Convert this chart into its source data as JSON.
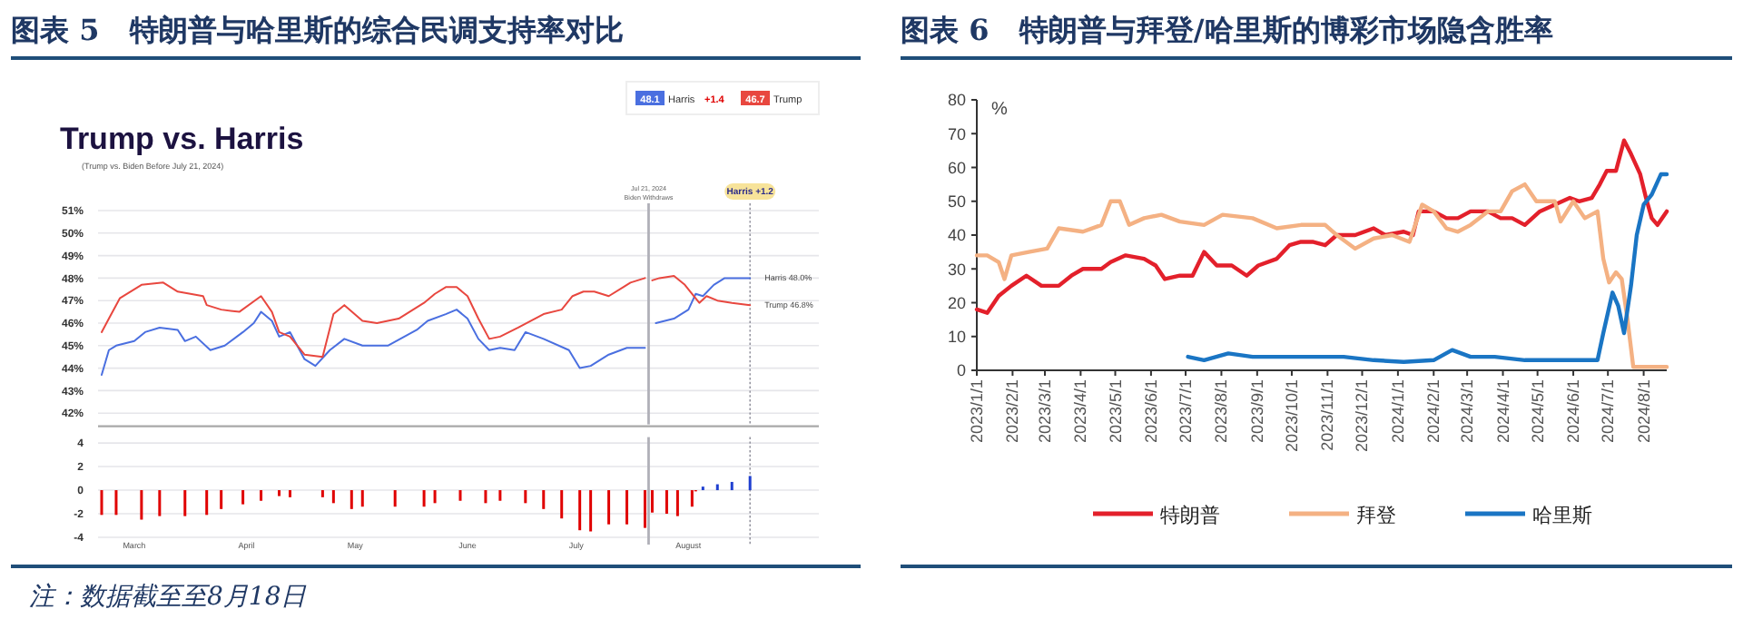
{
  "chart_data": [
    {
      "type": "line",
      "title": "图表 5   特朗普与哈里斯的综合民调支持率对比",
      "subtitle": "Trump vs. Harris",
      "xlim": [
        "2024-02-20",
        "2024-09-06"
      ],
      "ylim": [
        41.5,
        51
      ],
      "yticks": [
        {
          "value": 42,
          "label": "42%"
        },
        {
          "value": 43,
          "label": "43%"
        },
        {
          "value": 44,
          "label": "44%"
        },
        {
          "value": 45,
          "label": "45%"
        },
        {
          "value": 46,
          "label": "46%"
        },
        {
          "value": 47,
          "label": "47%"
        },
        {
          "value": 48,
          "label": "48%"
        },
        {
          "value": 49,
          "label": "49%"
        },
        {
          "value": 50,
          "label": "50%"
        },
        {
          "value": 51,
          "label": "51%"
        }
      ],
      "tick_labels": "y",
      "grid": "y",
      "legend": "top right",
      "series": [
        {
          "name": "Harris",
          "color": "#4a6fe0",
          "x": [
            "2024-02-21",
            "2024-02-23",
            "2024-02-25",
            "2024-03-01",
            "2024-03-04",
            "2024-03-08",
            "2024-03-13",
            "2024-03-15",
            "2024-03-18",
            "2024-03-22",
            "2024-03-26",
            "2024-03-31",
            "2024-04-03",
            "2024-04-05",
            "2024-04-08",
            "2024-04-10",
            "2024-04-13",
            "2024-04-17",
            "2024-04-20",
            "2024-04-24",
            "2024-04-28",
            "2024-05-03",
            "2024-05-10",
            "2024-05-18",
            "2024-05-21",
            "2024-05-26",
            "2024-05-29",
            "2024-06-01",
            "2024-06-04",
            "2024-06-07",
            "2024-06-10",
            "2024-06-14",
            "2024-06-17",
            "2024-06-22",
            "2024-06-29",
            "2024-07-02",
            "2024-07-05",
            "2024-07-10",
            "2024-07-15",
            "2024-07-20",
            "2024-07-23",
            "2024-07-28",
            "2024-08-01",
            "2024-08-03",
            "2024-08-05",
            "2024-08-08",
            "2024-08-11",
            "2024-08-18"
          ],
          "values": [
            43.7,
            44.8,
            45.0,
            45.2,
            45.6,
            45.8,
            45.7,
            45.2,
            45.4,
            44.8,
            45.0,
            45.6,
            46.0,
            46.5,
            46.1,
            45.4,
            45.6,
            44.4,
            44.1,
            44.8,
            45.3,
            45.0,
            45.0,
            45.7,
            46.1,
            46.4,
            46.6,
            46.2,
            45.3,
            44.8,
            44.9,
            44.8,
            45.6,
            45.3,
            44.8,
            44.0,
            44.1,
            44.6,
            44.9,
            44.9,
            46.0,
            46.2,
            46.6,
            47.3,
            47.2,
            47.7,
            48.0,
            48.0
          ]
        },
        {
          "name": "Trump",
          "color": "#e8473f",
          "x": [
            "2024-02-21",
            "2024-02-23",
            "2024-02-26",
            "2024-03-03",
            "2024-03-09",
            "2024-03-13",
            "2024-03-20",
            "2024-03-21",
            "2024-03-25",
            "2024-03-30",
            "2024-04-05",
            "2024-04-08",
            "2024-04-10",
            "2024-04-13",
            "2024-04-17",
            "2024-04-22",
            "2024-04-25",
            "2024-04-28",
            "2024-05-03",
            "2024-05-07",
            "2024-05-13",
            "2024-05-20",
            "2024-05-23",
            "2024-05-26",
            "2024-05-29",
            "2024-06-01",
            "2024-06-04",
            "2024-06-07",
            "2024-06-10",
            "2024-06-15",
            "2024-06-22",
            "2024-06-27",
            "2024-06-30",
            "2024-07-03",
            "2024-07-06",
            "2024-07-10",
            "2024-07-14",
            "2024-07-16",
            "2024-07-20",
            "2024-07-22",
            "2024-07-24",
            "2024-07-28",
            "2024-07-31",
            "2024-08-04",
            "2024-08-06",
            "2024-08-09",
            "2024-08-13",
            "2024-08-18"
          ],
          "values": [
            45.6,
            46.2,
            47.1,
            47.7,
            47.8,
            47.4,
            47.2,
            46.8,
            46.6,
            46.5,
            47.2,
            46.5,
            45.6,
            45.4,
            44.6,
            44.5,
            46.4,
            46.8,
            46.1,
            46.0,
            46.2,
            46.9,
            47.3,
            47.6,
            47.6,
            47.2,
            46.2,
            45.3,
            45.4,
            45.8,
            46.4,
            46.6,
            47.2,
            47.4,
            47.4,
            47.2,
            47.6,
            47.8,
            48.0,
            47.9,
            48.0,
            48.1,
            47.7,
            46.9,
            47.2,
            47.0,
            46.9,
            46.8
          ]
        }
      ],
      "ref_lines": [
        {
          "axis": "x",
          "value": "2024-07-21",
          "label": "Jul 21, 2024\nBiden Withdraws",
          "color": "#b0b0b8"
        },
        {
          "axis": "x",
          "value": "2024-08-18",
          "label": "Harris +1.2",
          "color": "#8a8a96",
          "line_style": "dotted"
        }
      ],
      "annotations": [
        "(Trump vs. Biden Before July 21, 2024)",
        "48.1",
        "+1.4",
        "46.7",
        {
          "text": "Harris 48.0%",
          "x": "2024-08-18",
          "y": 48.0
        },
        {
          "text": "Trump 46.8%",
          "x": "2024-08-18",
          "y": 46.8
        }
      ]
    },
    {
      "type": "bar",
      "xlim": [
        "2024-02-20",
        "2024-09-06"
      ],
      "ylim": [
        -4,
        4.5
      ],
      "yticks": [
        -4,
        -2,
        0,
        2,
        4
      ],
      "grid": "y",
      "xticks": [
        {
          "value": "2024-03-01",
          "label": "March"
        },
        {
          "value": "2024-04-01",
          "label": "April"
        },
        {
          "value": "2024-05-01",
          "label": "May"
        },
        {
          "value": "2024-06-01",
          "label": "June"
        },
        {
          "value": "2024-07-01",
          "label": "July"
        },
        {
          "value": "2024-08-01",
          "label": "August"
        }
      ],
      "x": [
        "2024-02-21",
        "2024-02-25",
        "2024-03-03",
        "2024-03-08",
        "2024-03-15",
        "2024-03-21",
        "2024-03-25",
        "2024-03-31",
        "2024-04-05",
        "2024-04-10",
        "2024-04-13",
        "2024-04-22",
        "2024-04-25",
        "2024-04-30",
        "2024-05-03",
        "2024-05-12",
        "2024-05-20",
        "2024-05-23",
        "2024-05-30",
        "2024-06-06",
        "2024-06-10",
        "2024-06-17",
        "2024-06-22",
        "2024-06-27",
        "2024-07-02",
        "2024-07-05",
        "2024-07-10",
        "2024-07-15",
        "2024-07-20",
        "2024-07-22",
        "2024-07-26",
        "2024-07-29",
        "2024-08-02",
        "2024-08-03",
        "2024-08-05",
        "2024-08-09",
        "2024-08-13",
        "2024-08-18"
      ],
      "values": [
        -2.1,
        -2.1,
        -2.5,
        -2.2,
        -2.2,
        -2.1,
        -1.6,
        -1.2,
        -0.9,
        -0.5,
        -0.6,
        -0.6,
        -1.1,
        -1.6,
        -1.4,
        -1.4,
        -1.4,
        -1.1,
        -0.9,
        -1.1,
        -0.9,
        -1.1,
        -1.6,
        -2.4,
        -3.4,
        -3.5,
        -2.9,
        -2.9,
        -3.2,
        -1.9,
        -2.0,
        -2.2,
        -1.4,
        -0.1,
        0.3,
        0.5,
        0.7,
        1.2
      ],
      "colors": [
        "#e00000",
        "#e00000",
        "#e00000",
        "#e00000",
        "#e00000",
        "#e00000",
        "#e00000",
        "#e00000",
        "#e00000",
        "#e00000",
        "#e00000",
        "#e00000",
        "#e00000",
        "#e00000",
        "#e00000",
        "#e00000",
        "#e00000",
        "#e00000",
        "#e00000",
        "#e00000",
        "#e00000",
        "#e00000",
        "#e00000",
        "#e00000",
        "#e00000",
        "#e00000",
        "#e00000",
        "#e00000",
        "#e00000",
        "#e00000",
        "#e00000",
        "#e00000",
        "#e00000",
        "#e00000",
        "#1f3fd0",
        "#1f3fd0",
        "#1f3fd0",
        "#1f3fd0"
      ],
      "ref_lines": [
        {
          "axis": "x",
          "value": "2024-07-21",
          "color": "#b0b0b8"
        },
        {
          "axis": "x",
          "value": "2024-08-18",
          "color": "#8a8a96",
          "line_style": "dotted"
        }
      ],
      "annotations": [
        "注：数据截至至8月18日"
      ]
    },
    {
      "type": "line",
      "title": "图表 6   特朗普与拜登/哈里斯的博彩市场隐含胜率",
      "ylabel": "%",
      "xlim": [
        "2023-01-01",
        "2024-08-21"
      ],
      "ylim": [
        0,
        80
      ],
      "yticks": [
        0,
        10,
        20,
        30,
        40,
        50,
        60,
        70,
        80
      ],
      "xticks": [
        {
          "value": "2023-01-01",
          "label": "2023/1/1"
        },
        {
          "value": "2023-02-01",
          "label": "2023/2/1"
        },
        {
          "value": "2023-03-01",
          "label": "2023/3/1"
        },
        {
          "value": "2023-04-01",
          "label": "2023/4/1"
        },
        {
          "value": "2023-05-01",
          "label": "2023/5/1"
        },
        {
          "value": "2023-06-01",
          "label": "2023/6/1"
        },
        {
          "value": "2023-07-01",
          "label": "2023/7/1"
        },
        {
          "value": "2023-08-01",
          "label": "2023/8/1"
        },
        {
          "value": "2023-09-01",
          "label": "2023/9/1"
        },
        {
          "value": "2023-10-01",
          "label": "2023/10/1"
        },
        {
          "value": "2023-11-01",
          "label": "2023/11/1"
        },
        {
          "value": "2023-12-01",
          "label": "2023/12/1"
        },
        {
          "value": "2024-01-01",
          "label": "2024/1/1"
        },
        {
          "value": "2024-02-01",
          "label": "2024/2/1"
        },
        {
          "value": "2024-03-01",
          "label": "2024/3/1"
        },
        {
          "value": "2024-04-01",
          "label": "2024/4/1"
        },
        {
          "value": "2024-05-01",
          "label": "2024/5/1"
        },
        {
          "value": "2024-06-01",
          "label": "2024/6/1"
        },
        {
          "value": "2024-07-01",
          "label": "2024/7/1"
        },
        {
          "value": "2024-08-01",
          "label": "2024/8/1"
        }
      ],
      "legend": "bottom",
      "series": [
        {
          "name": "特朗普",
          "color": "#e3202b",
          "x": [
            "2023-01-01",
            "2023-01-10",
            "2023-01-20",
            "2023-01-31",
            "2023-02-13",
            "2023-02-26",
            "2023-03-13",
            "2023-03-24",
            "2023-04-03",
            "2023-04-19",
            "2023-04-27",
            "2023-05-10",
            "2023-05-26",
            "2023-06-05",
            "2023-06-13",
            "2023-06-26",
            "2023-07-07",
            "2023-07-17",
            "2023-07-28",
            "2023-08-10",
            "2023-08-23",
            "2023-09-02",
            "2023-09-18",
            "2023-09-29",
            "2023-10-09",
            "2023-10-19",
            "2023-10-30",
            "2023-11-09",
            "2023-11-25",
            "2023-12-11",
            "2023-12-21",
            "2024-01-06",
            "2024-01-14",
            "2024-01-19",
            "2024-02-01",
            "2024-02-12",
            "2024-02-22",
            "2024-03-04",
            "2024-03-19",
            "2024-03-30",
            "2024-04-09",
            "2024-04-20",
            "2024-05-03",
            "2024-05-16",
            "2024-05-29",
            "2024-06-06",
            "2024-06-17",
            "2024-06-24",
            "2024-06-30",
            "2024-07-08",
            "2024-07-15",
            "2024-07-21",
            "2024-07-29",
            "2024-08-03",
            "2024-08-08",
            "2024-08-13",
            "2024-08-21"
          ],
          "values": [
            18,
            17,
            22,
            25,
            28,
            25,
            25,
            28,
            30,
            30,
            32,
            34,
            33,
            31,
            27,
            28,
            28,
            35,
            31,
            31,
            28,
            31,
            33,
            37,
            38,
            38,
            37,
            40,
            40,
            42,
            40,
            41,
            40,
            47,
            47,
            45,
            45,
            47,
            47,
            45,
            45,
            43,
            47,
            49,
            51,
            50,
            51,
            55,
            59,
            59,
            68,
            64,
            58,
            51,
            45,
            43,
            47
          ]
        },
        {
          "name": "拜登",
          "color": "#f4b183",
          "x": [
            "2023-01-01",
            "2023-01-10",
            "2023-01-20",
            "2023-01-25",
            "2023-01-31",
            "2023-02-15",
            "2023-03-03",
            "2023-03-13",
            "2023-04-03",
            "2023-04-19",
            "2023-04-27",
            "2023-05-05",
            "2023-05-13",
            "2023-05-26",
            "2023-06-10",
            "2023-06-26",
            "2023-07-17",
            "2023-08-02",
            "2023-08-28",
            "2023-09-18",
            "2023-10-09",
            "2023-10-30",
            "2023-11-09",
            "2023-11-25",
            "2023-12-11",
            "2023-12-27",
            "2024-01-11",
            "2024-01-22",
            "2024-02-01",
            "2024-02-12",
            "2024-02-22",
            "2024-03-04",
            "2024-03-19",
            "2024-03-30",
            "2024-04-09",
            "2024-04-20",
            "2024-04-30",
            "2024-05-16",
            "2024-05-21",
            "2024-06-01",
            "2024-06-11",
            "2024-06-22",
            "2024-06-27",
            "2024-07-02",
            "2024-07-08",
            "2024-07-13",
            "2024-07-18",
            "2024-07-23",
            "2024-08-21"
          ],
          "values": [
            34,
            34,
            32,
            27,
            34,
            35,
            36,
            42,
            41,
            43,
            50,
            50,
            43,
            45,
            46,
            44,
            43,
            46,
            45,
            42,
            43,
            43,
            40,
            36,
            39,
            40,
            38,
            49,
            47,
            42,
            41,
            43,
            47,
            47,
            53,
            55,
            50,
            50,
            44,
            50,
            45,
            47,
            33,
            26,
            29,
            27,
            15,
            1,
            1
          ]
        },
        {
          "name": "哈里斯",
          "color": "#1a75c4",
          "x": [
            "2023-07-03",
            "2023-07-17",
            "2023-08-07",
            "2023-08-28",
            "2023-10-19",
            "2023-11-15",
            "2023-12-11",
            "2024-01-06",
            "2024-02-01",
            "2024-02-17",
            "2024-03-04",
            "2024-03-25",
            "2024-04-20",
            "2024-05-16",
            "2024-06-22",
            "2024-06-27",
            "2024-07-05",
            "2024-07-10",
            "2024-07-15",
            "2024-07-21",
            "2024-07-26",
            "2024-08-01",
            "2024-08-08",
            "2024-08-16",
            "2024-08-21"
          ],
          "values": [
            4,
            3,
            5,
            4,
            4,
            4,
            3,
            2.5,
            3,
            6,
            4,
            4,
            3,
            3,
            3,
            11,
            23,
            19,
            11,
            25,
            40,
            49,
            52,
            58,
            58
          ]
        }
      ]
    }
  ]
}
